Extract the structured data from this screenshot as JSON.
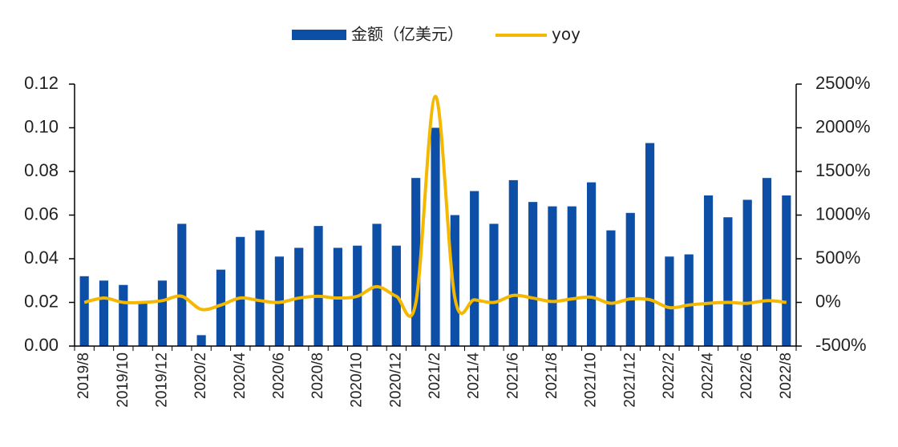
{
  "chart_data": {
    "type": "bar_line",
    "categories": [
      "2019/8",
      null,
      "2019/10",
      null,
      "2019/12",
      null,
      "2020/2",
      null,
      "2020/4",
      null,
      "2020/6",
      null,
      "2020/8",
      null,
      "2020/10",
      null,
      "2020/12",
      null,
      "2021/2",
      null,
      "2021/4",
      null,
      "2021/6",
      null,
      "2021/8",
      null,
      "2021/10",
      null,
      "2021/12",
      null,
      "2022/2",
      null,
      "2022/4",
      null,
      "2022/6",
      null,
      "2022/8"
    ],
    "series": [
      {
        "name": "金额（亿美元）",
        "type": "bar",
        "color": "#0d4ea6",
        "values": [
          0.032,
          0.03,
          0.028,
          0.02,
          0.03,
          0.056,
          0.005,
          0.035,
          0.05,
          0.053,
          0.041,
          0.045,
          0.055,
          0.045,
          0.046,
          0.056,
          0.046,
          0.077,
          0.1,
          0.06,
          0.071,
          0.056,
          0.076,
          0.066,
          0.064,
          0.064,
          0.075,
          0.053,
          0.061,
          0.093,
          0.041,
          0.042,
          0.069,
          0.059,
          0.067,
          0.077,
          0.069
        ]
      },
      {
        "name": "yoy",
        "type": "line",
        "axis": "y2",
        "color": "#f5b800",
        "values": [
          0,
          50,
          0,
          0,
          20,
          70,
          -80,
          -30,
          50,
          20,
          0,
          50,
          70,
          50,
          70,
          180,
          70,
          0,
          2360,
          50,
          30,
          0,
          80,
          50,
          10,
          40,
          60,
          -10,
          40,
          30,
          -60,
          -30,
          -10,
          0,
          -10,
          20,
          0
        ]
      }
    ],
    "ylim": [
      0,
      0.12
    ],
    "yticks": [
      {
        "value": 0,
        "label": "0.00"
      },
      {
        "value": 0.02,
        "label": "0.02"
      },
      {
        "value": 0.04,
        "label": "0.04"
      },
      {
        "value": 0.06,
        "label": "0.06"
      },
      {
        "value": 0.08,
        "label": "0.08"
      },
      {
        "value": 0.1,
        "label": "0.10"
      },
      {
        "value": 0.12,
        "label": "0.12"
      }
    ],
    "y2lim": [
      -500,
      2500
    ],
    "y2ticks": [
      {
        "value": -500,
        "label": "-500%"
      },
      {
        "value": 0,
        "label": "0%"
      },
      {
        "value": 500,
        "label": "500%"
      },
      {
        "value": 1000,
        "label": "1000%"
      },
      {
        "value": 1500,
        "label": "1500%"
      },
      {
        "value": 2000,
        "label": "2000%"
      },
      {
        "value": 2500,
        "label": "2500%"
      }
    ],
    "legend": "top"
  }
}
